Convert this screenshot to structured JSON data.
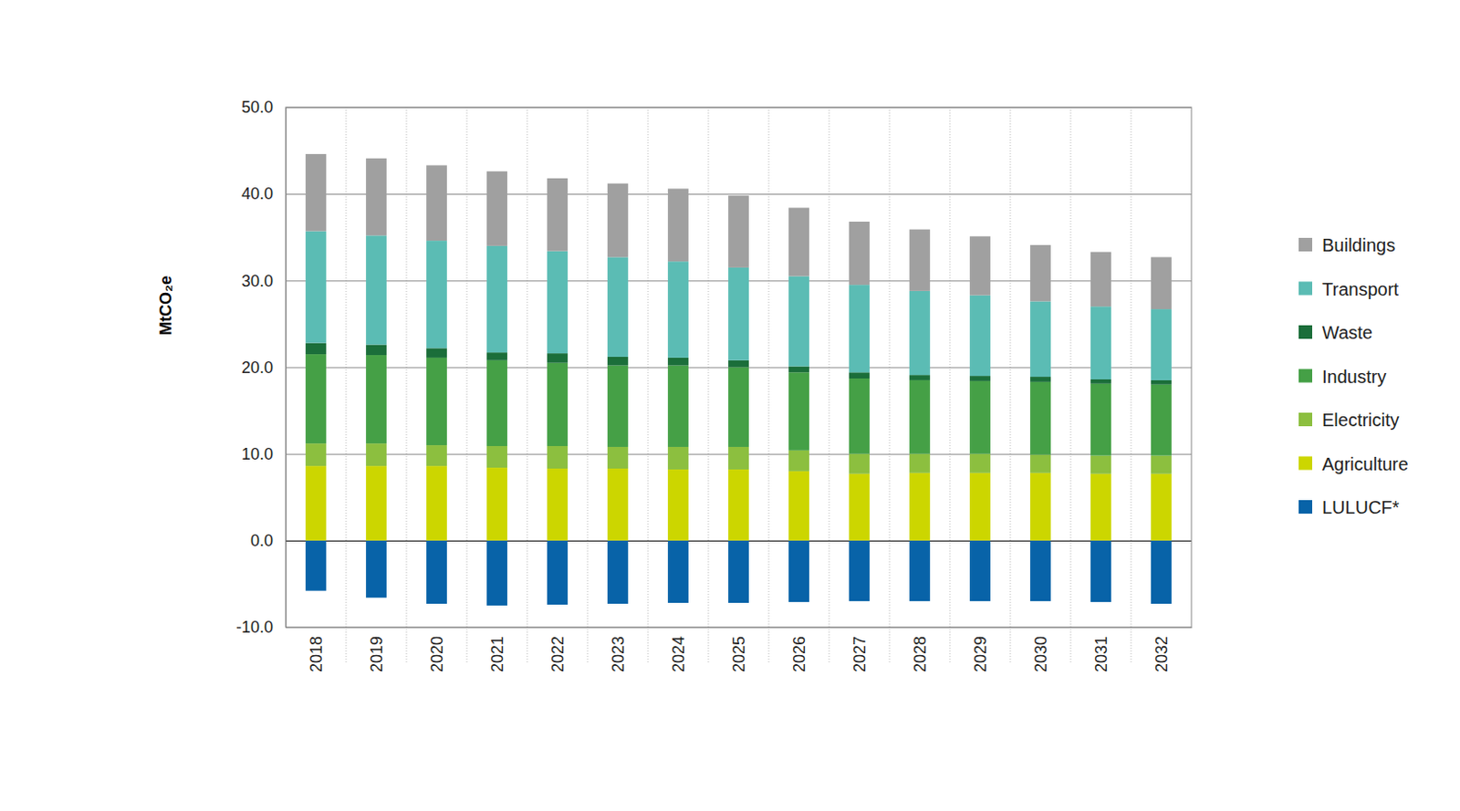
{
  "chart_data": {
    "type": "bar",
    "stacked": true,
    "grid": true,
    "legend": "right",
    "ylabel": "MtCO₂e",
    "categories": [
      "2018",
      "2019",
      "2020",
      "2021",
      "2022",
      "2023",
      "2024",
      "2025",
      "2026",
      "2027",
      "2028",
      "2029",
      "2030",
      "2031",
      "2032"
    ],
    "ylim": [
      -10,
      50
    ],
    "yticks": [
      {
        "value": -10,
        "label": "-10.0"
      },
      {
        "value": 0,
        "label": "0.0"
      },
      {
        "value": 10,
        "label": "10.0"
      },
      {
        "value": 20,
        "label": "20.0"
      },
      {
        "value": 30,
        "label": "30.0"
      },
      {
        "value": 40,
        "label": "40.0"
      },
      {
        "value": 50,
        "label": "50.0"
      }
    ],
    "series": [
      {
        "name": "Buildings",
        "color": "#a0a0a0",
        "values": [
          8.9,
          8.9,
          8.7,
          8.6,
          8.4,
          8.5,
          8.4,
          8.3,
          7.9,
          7.3,
          7.1,
          6.8,
          6.5,
          6.3,
          6.0
        ]
      },
      {
        "name": "Transport",
        "color": "#5bbcb4",
        "values": [
          12.9,
          12.6,
          12.4,
          12.3,
          11.8,
          11.5,
          11.1,
          10.7,
          10.4,
          10.1,
          9.7,
          9.3,
          8.7,
          8.4,
          8.2
        ]
      },
      {
        "name": "Waste",
        "color": "#1b6e3a",
        "values": [
          1.3,
          1.2,
          1.1,
          0.9,
          1.1,
          1.0,
          0.9,
          0.8,
          0.7,
          0.7,
          0.6,
          0.6,
          0.6,
          0.5,
          0.5
        ]
      },
      {
        "name": "Industry",
        "color": "#45a046",
        "values": [
          10.3,
          10.2,
          10.1,
          9.9,
          9.6,
          9.4,
          9.4,
          9.2,
          9.0,
          8.7,
          8.5,
          8.4,
          8.4,
          8.3,
          8.2
        ]
      },
      {
        "name": "Electricity",
        "color": "#8cbf3f",
        "values": [
          2.6,
          2.6,
          2.4,
          2.5,
          2.6,
          2.5,
          2.6,
          2.6,
          2.4,
          2.3,
          2.2,
          2.2,
          2.1,
          2.1,
          2.1
        ]
      },
      {
        "name": "Agriculture",
        "color": "#ccd600",
        "values": [
          8.6,
          8.6,
          8.6,
          8.4,
          8.3,
          8.3,
          8.2,
          8.2,
          8.0,
          7.7,
          7.8,
          7.8,
          7.8,
          7.7,
          7.7
        ]
      },
      {
        "name": "LULUCF*",
        "color": "#0863a8",
        "values": [
          -5.8,
          -6.6,
          -7.3,
          -7.5,
          -7.4,
          -7.3,
          -7.2,
          -7.2,
          -7.1,
          -7.0,
          -7.0,
          -7.0,
          -7.0,
          -7.1,
          -7.3
        ]
      }
    ]
  }
}
